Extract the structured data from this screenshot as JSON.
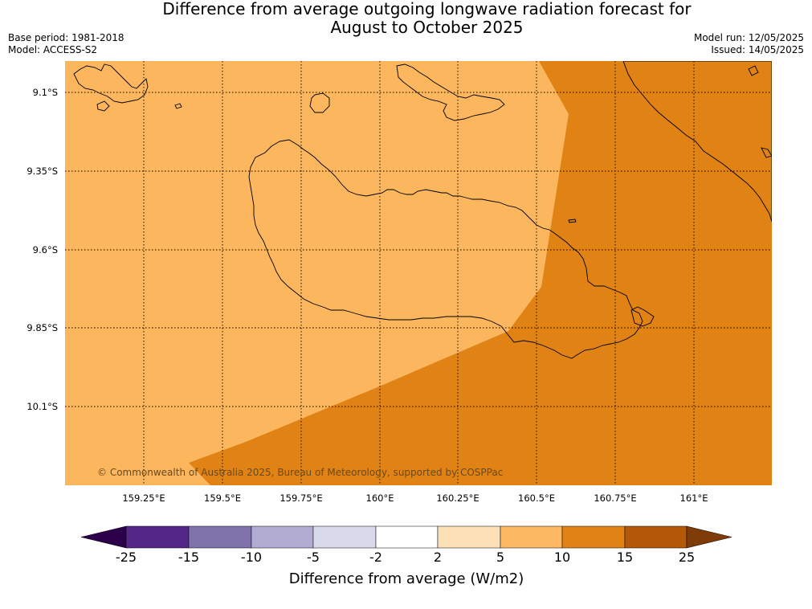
{
  "title": {
    "line1": "Difference from average outgoing longwave radiation forecast for",
    "line2": "August to October 2025"
  },
  "meta": {
    "base_period": "Base period: 1981-2018",
    "model": "Model: ACCESS-S2",
    "model_run": "Model run: 12/05/2025",
    "issued": "Issued: 14/05/2025"
  },
  "map": {
    "longitude_ticks": [
      "159.25°E",
      "159.5°E",
      "159.75°E",
      "160°E",
      "160.25°E",
      "160.5°E",
      "160.75°E",
      "161°E"
    ],
    "latitude_ticks": [
      "9.1°S",
      "9.35°S",
      "9.6°S",
      "9.85°S",
      "10.1°S"
    ],
    "copyright": "© Commonwealth of Australia 2025, Bureau of Meteorology, supported by COSPPac",
    "fill_colors": {
      "band_5_10": "#fbb65e",
      "band_10_15": "#e08214"
    },
    "coastline_color": "#000000",
    "gridline_style": "dotted"
  },
  "colorbar": {
    "labels": [
      "-25",
      "-15",
      "-10",
      "-5",
      "-2",
      "2",
      "5",
      "10",
      "15",
      "25"
    ],
    "colors": [
      "#2d004b",
      "#542788",
      "#8073ac",
      "#b2abd2",
      "#d8daeb",
      "#ffffff",
      "#fee0b6",
      "#fdb863",
      "#e08214",
      "#b35806",
      "#7f3b08"
    ],
    "title": "Difference from average (W/m2)"
  }
}
